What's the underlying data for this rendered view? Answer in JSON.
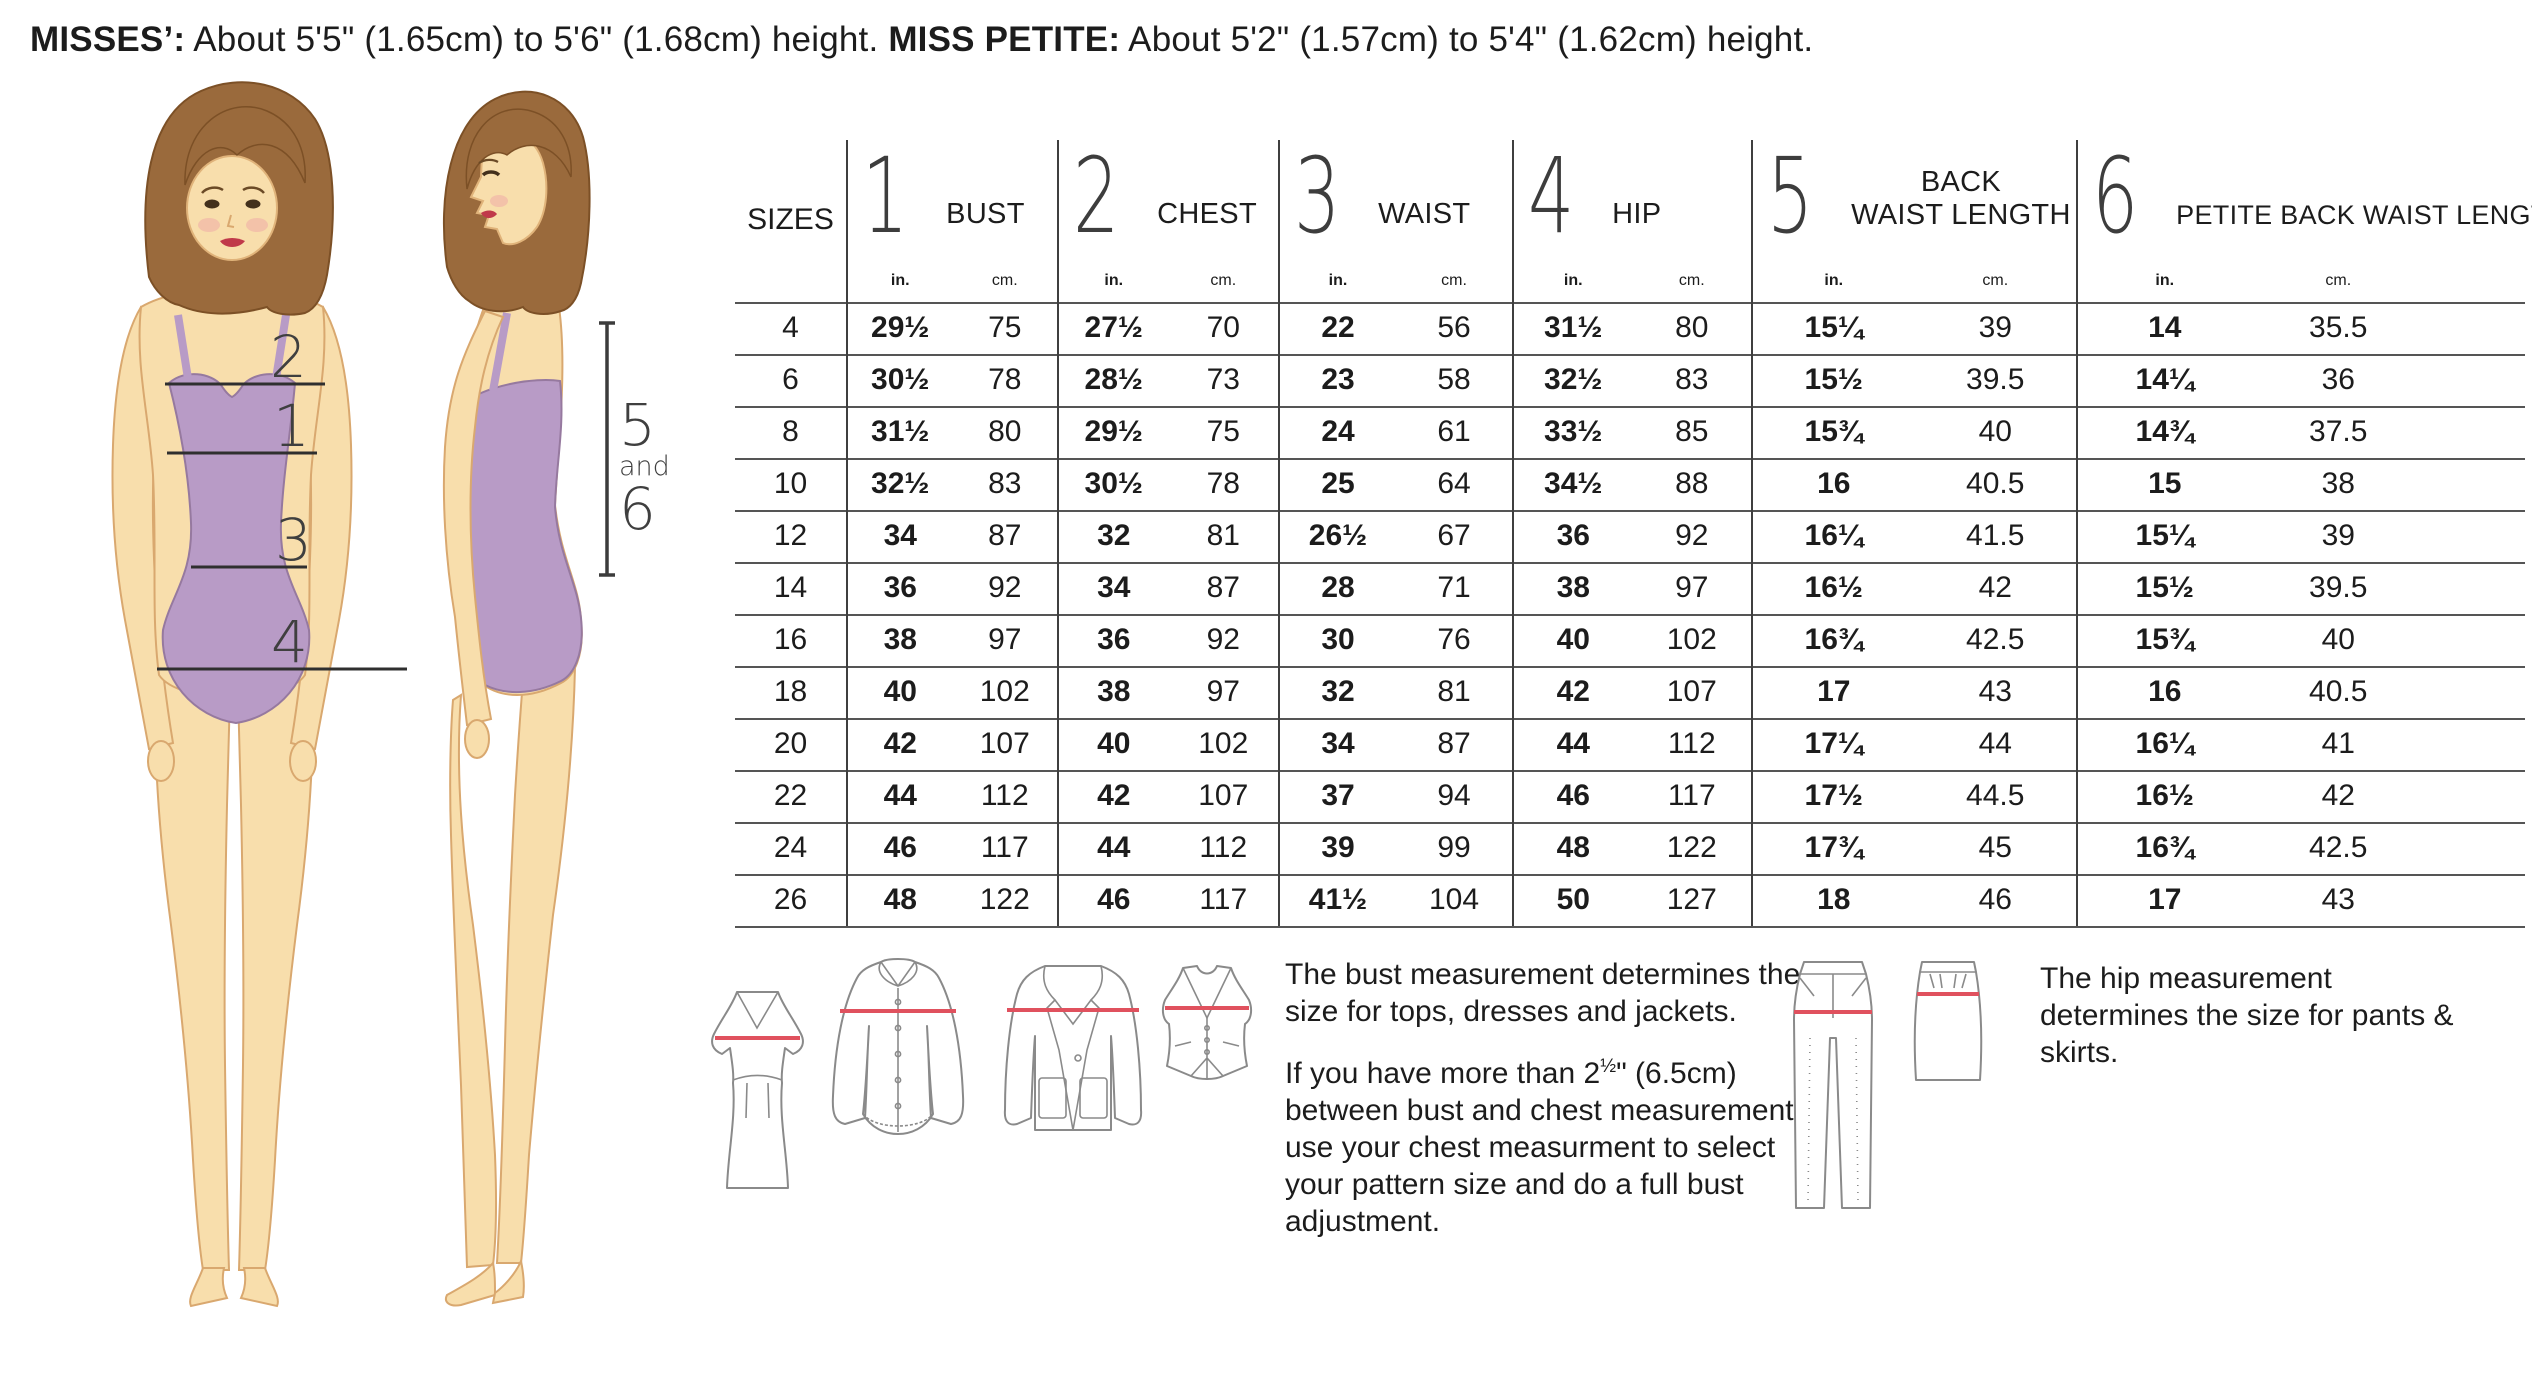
{
  "heading": {
    "misses_label": "MISSES’:",
    "misses_text": " About 5'5\" (1.65cm) to 5'6\" (1.68cm) height. ",
    "petite_label": "MISS PETITE:",
    "petite_text": " About 5'2\" (1.57cm) to 5'4\" (1.62cm) height."
  },
  "figure": {
    "num1": "1",
    "num2": "2",
    "num3": "3",
    "num4": "4",
    "bracket_top": "5",
    "bracket_mid": "and",
    "bracket_bottom": "6"
  },
  "table": {
    "sizes_header": "SIZES",
    "unit_in": "in.",
    "unit_cm": "cm.",
    "columns": [
      {
        "num": "1",
        "label": "BUST"
      },
      {
        "num": "2",
        "label": "CHEST"
      },
      {
        "num": "3",
        "label": "WAIST"
      },
      {
        "num": "4",
        "label": "HIP"
      },
      {
        "num": "5",
        "label_lines": [
          "BACK",
          "WAIST LENGTH"
        ]
      },
      {
        "num": "6",
        "label": "PETITE BACK WAIST LENGTH"
      }
    ],
    "rows": [
      {
        "size": "4",
        "values": [
          [
            "29½",
            "75"
          ],
          [
            "27½",
            "70"
          ],
          [
            "22",
            "56"
          ],
          [
            "31½",
            "80"
          ],
          [
            "15¼",
            "39"
          ],
          [
            "14",
            "35.5"
          ]
        ]
      },
      {
        "size": "6",
        "values": [
          [
            "30½",
            "78"
          ],
          [
            "28½",
            "73"
          ],
          [
            "23",
            "58"
          ],
          [
            "32½",
            "83"
          ],
          [
            "15½",
            "39.5"
          ],
          [
            "14¼",
            "36"
          ]
        ]
      },
      {
        "size": "8",
        "values": [
          [
            "31½",
            "80"
          ],
          [
            "29½",
            "75"
          ],
          [
            "24",
            "61"
          ],
          [
            "33½",
            "85"
          ],
          [
            "15¾",
            "40"
          ],
          [
            "14¾",
            "37.5"
          ]
        ]
      },
      {
        "size": "10",
        "values": [
          [
            "32½",
            "83"
          ],
          [
            "30½",
            "78"
          ],
          [
            "25",
            "64"
          ],
          [
            "34½",
            "88"
          ],
          [
            "16",
            "40.5"
          ],
          [
            "15",
            "38"
          ]
        ]
      },
      {
        "size": "12",
        "values": [
          [
            "34",
            "87"
          ],
          [
            "32",
            "81"
          ],
          [
            "26½",
            "67"
          ],
          [
            "36",
            "92"
          ],
          [
            "16¼",
            "41.5"
          ],
          [
            "15¼",
            "39"
          ]
        ]
      },
      {
        "size": "14",
        "values": [
          [
            "36",
            "92"
          ],
          [
            "34",
            "87"
          ],
          [
            "28",
            "71"
          ],
          [
            "38",
            "97"
          ],
          [
            "16½",
            "42"
          ],
          [
            "15½",
            "39.5"
          ]
        ]
      },
      {
        "size": "16",
        "values": [
          [
            "38",
            "97"
          ],
          [
            "36",
            "92"
          ],
          [
            "30",
            "76"
          ],
          [
            "40",
            "102"
          ],
          [
            "16¾",
            "42.5"
          ],
          [
            "15¾",
            "40"
          ]
        ]
      },
      {
        "size": "18",
        "values": [
          [
            "40",
            "102"
          ],
          [
            "38",
            "97"
          ],
          [
            "32",
            "81"
          ],
          [
            "42",
            "107"
          ],
          [
            "17",
            "43"
          ],
          [
            "16",
            "40.5"
          ]
        ]
      },
      {
        "size": "20",
        "values": [
          [
            "42",
            "107"
          ],
          [
            "40",
            "102"
          ],
          [
            "34",
            "87"
          ],
          [
            "44",
            "112"
          ],
          [
            "17¼",
            "44"
          ],
          [
            "16¼",
            "41"
          ]
        ]
      },
      {
        "size": "22",
        "values": [
          [
            "44",
            "112"
          ],
          [
            "42",
            "107"
          ],
          [
            "37",
            "94"
          ],
          [
            "46",
            "117"
          ],
          [
            "17½",
            "44.5"
          ],
          [
            "16½",
            "42"
          ]
        ]
      },
      {
        "size": "24",
        "values": [
          [
            "46",
            "117"
          ],
          [
            "44",
            "112"
          ],
          [
            "39",
            "99"
          ],
          [
            "48",
            "122"
          ],
          [
            "17¾",
            "45"
          ],
          [
            "16¾",
            "42.5"
          ]
        ]
      },
      {
        "size": "26",
        "values": [
          [
            "48",
            "122"
          ],
          [
            "46",
            "117"
          ],
          [
            "41½",
            "104"
          ],
          [
            "50",
            "127"
          ],
          [
            "18",
            "46"
          ],
          [
            "17",
            "43"
          ]
        ]
      }
    ]
  },
  "notes": {
    "bust1": "The bust measurement determines the size for tops, dresses and jackets.",
    "bust2_prefix": "If you have more than 2",
    "bust2_frac": "½",
    "bust2_rest": "\" (6.5cm) between bust and chest measurement, use your chest measurment to select your pattern size and do a full bust adjustment.",
    "hip": "The hip measurement determines the size for pants & skirts."
  },
  "colors": {
    "accent_red": "#e0515e",
    "leotard_lavender": "#b89bc6",
    "skin": "#f8deac",
    "hair_brown": "#9a6a3c",
    "line_dark": "#3f3f3f"
  }
}
